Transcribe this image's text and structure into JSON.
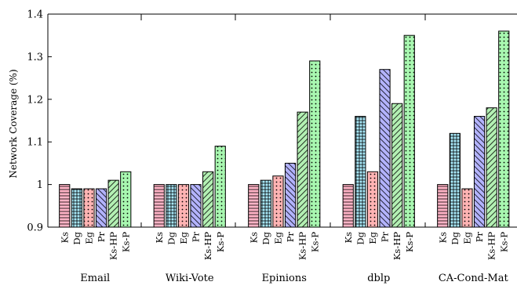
{
  "chart_data": {
    "type": "bar",
    "title": "",
    "xlabel": "",
    "ylabel": "Network Coverage (%)",
    "ylim": [
      0.9,
      1.4
    ],
    "yticks": [
      "0.9",
      "1",
      "1.1",
      "1.2",
      "1.3",
      "1.4"
    ],
    "grid": false,
    "legend": "none",
    "categories": [
      "Email",
      "Wiki-Vote",
      "Epinions",
      "dblp",
      "CA-Cond-Mat"
    ],
    "series": [
      {
        "name": "Ks",
        "values": [
          1.0,
          1.0,
          1.0,
          1.0,
          1.0
        ],
        "fill": "#ffb3c6",
        "pattern": "horizontal-lines"
      },
      {
        "name": "Dg",
        "values": [
          0.99,
          1.0,
          1.01,
          1.16,
          1.12
        ],
        "fill": "#a8e8f8",
        "pattern": "grid"
      },
      {
        "name": "Eg",
        "values": [
          0.99,
          1.0,
          1.02,
          1.03,
          0.99
        ],
        "fill": "#ffb3b3",
        "pattern": "dots"
      },
      {
        "name": "Pr",
        "values": [
          0.99,
          1.0,
          1.05,
          1.27,
          1.16
        ],
        "fill": "#b3b3ff",
        "pattern": "north-east-lines"
      },
      {
        "name": "Ks-HP",
        "values": [
          1.01,
          1.03,
          1.17,
          1.19,
          1.18
        ],
        "fill": "#b3f0b3",
        "pattern": "north-west-lines"
      },
      {
        "name": "Ks-P",
        "values": [
          1.03,
          1.09,
          1.29,
          1.35,
          1.36
        ],
        "fill": "#a8f7b0",
        "pattern": "dots"
      }
    ]
  }
}
